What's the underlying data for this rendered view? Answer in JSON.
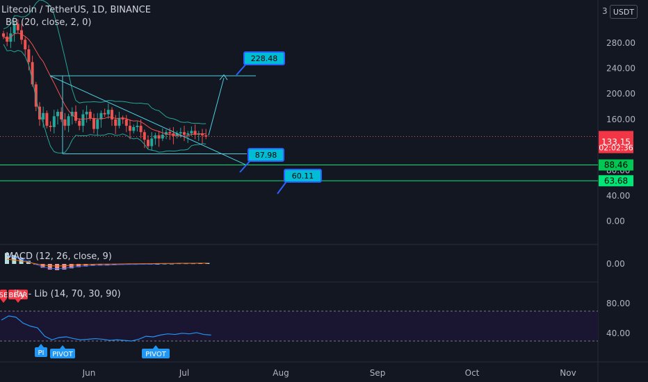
{
  "header": {
    "symbol_title": "Litecoin / TetherUS, 1D, BINANCE",
    "bb_label": "BB (20, close, 2, 0)",
    "macd_label": "MACD (12, 26, close, 9)",
    "rsi_label": "ity - Lib (14, 70, 30, 90)",
    "currency": "USDT"
  },
  "axes": {
    "x_labels": [
      "Jun",
      "Jul",
      "Aug",
      "Sep",
      "Oct",
      "Nov"
    ],
    "price_ticks": [
      "280.00",
      "240.00",
      "200.00",
      "160.00",
      "80.00",
      "40.00",
      "0.00"
    ],
    "macd_ticks": [
      "0.00"
    ],
    "rsi_ticks": [
      "80.00",
      "40.00"
    ]
  },
  "price_tags": {
    "current_price": "133.15",
    "countdown": "02:02:36",
    "line_high": "88.46",
    "line_low": "63.68",
    "top_cut": "3"
  },
  "annotations": {
    "target": "228.48",
    "support": "87.98",
    "lower": "60.11"
  },
  "rsi_tags": {
    "bear_left": "SE",
    "bear": "BEAR",
    "pivot_left": "PI",
    "pivot1": "PIVOT",
    "pivot2": "PIVOT"
  },
  "colors": {
    "background": "#131722",
    "up_candle": "#26a69a",
    "down_candle": "#ef5350",
    "bb_band": "#26a69a",
    "bb_basis": "#ef5350",
    "pattern_lines": "#4dd0e1",
    "support_lines": "#00e676",
    "macd_line": "#2962ff",
    "signal_line": "#ff6d00",
    "rsi_line": "#2196f3",
    "tag_fill": "#00bcd4"
  },
  "chart_data": {
    "type": "candlestick",
    "title": "Litecoin / TetherUS, 1D, BINANCE",
    "price_ylim": [
      -20,
      330
    ],
    "current_price": 133.15,
    "horizontal_levels": [
      88.46,
      63.68
    ],
    "annotations": [
      228.48,
      87.98,
      60.11
    ],
    "series": [
      {
        "name": "close",
        "values": [
          290,
          282,
          295,
          310,
          300,
          285,
          270,
          250,
          215,
          180,
          160,
          170,
          150,
          148,
          165,
          172,
          160,
          150,
          165,
          172,
          158,
          150,
          168,
          172,
          162,
          145,
          160,
          170,
          168,
          175,
          160,
          150,
          162,
          160,
          150,
          142,
          148,
          150,
          140,
          128,
          118,
          130,
          135,
          130,
          136,
          140,
          138,
          134,
          138,
          140,
          136,
          138,
          142,
          136,
          138,
          135,
          133
        ]
      },
      {
        "name": "MACD",
        "values": [
          35,
          28,
          20,
          10,
          -2,
          -12,
          -18,
          -20,
          -18,
          -14,
          -10,
          -8,
          -6,
          -5,
          -5,
          -4,
          -3,
          -2,
          -2,
          -1,
          -1,
          0,
          1,
          1,
          2,
          2,
          2,
          3,
          3
        ]
      },
      {
        "name": "RSI",
        "values": [
          65,
          72,
          70,
          60,
          55,
          52,
          38,
          32,
          36,
          37,
          34,
          32,
          33,
          34,
          33,
          31,
          32,
          31,
          30,
          33,
          38,
          37,
          40,
          42,
          41,
          43,
          42,
          44,
          41,
          40
        ]
      }
    ]
  }
}
